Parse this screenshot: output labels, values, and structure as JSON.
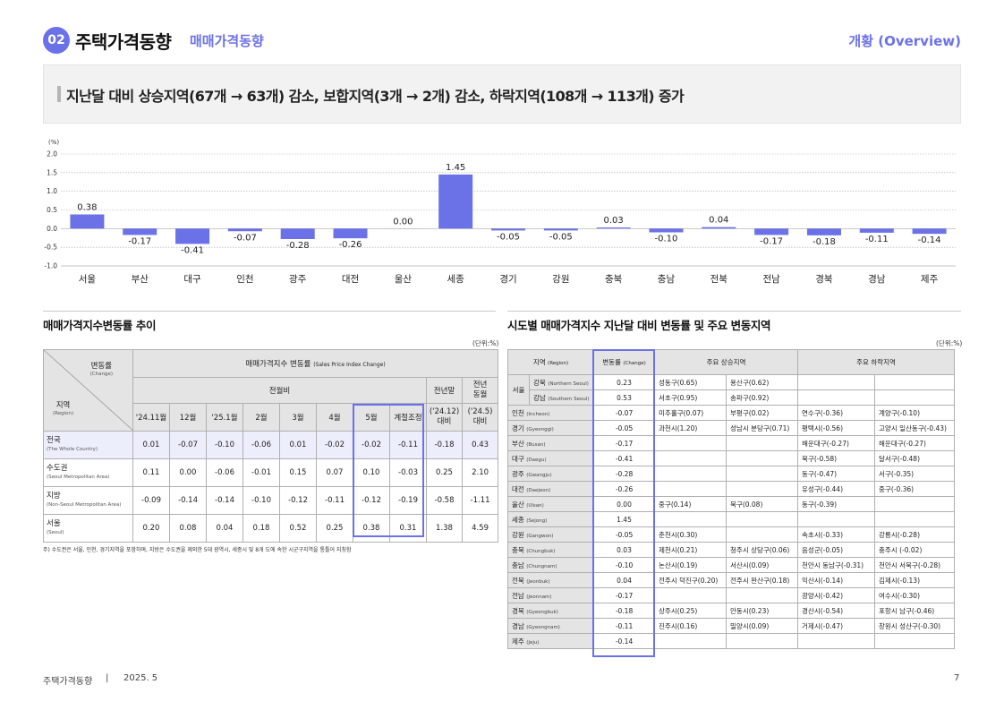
{
  "header": {
    "badge": "02",
    "title": "주택가격동향",
    "subtitle": "매매가격동향",
    "right": "개황 (Overview)"
  },
  "headline": "지난달 대비 상승지역(67개 → 63개) 감소, 보합지역(3개 → 2개) 감소, 하락지역(108개 → 113개) 증가",
  "chart_data": {
    "type": "bar",
    "unit_label": "(%)",
    "categories": [
      "서울",
      "부산",
      "대구",
      "인천",
      "광주",
      "대전",
      "울산",
      "세종",
      "경기",
      "강원",
      "충북",
      "충남",
      "전북",
      "전남",
      "경북",
      "경남",
      "제주"
    ],
    "values": [
      0.38,
      -0.17,
      -0.41,
      -0.07,
      -0.28,
      -0.26,
      0.0,
      1.45,
      -0.05,
      -0.05,
      0.03,
      -0.1,
      0.04,
      -0.17,
      -0.18,
      -0.11,
      -0.14
    ],
    "value_labels": [
      "0.38",
      "-0.17",
      "-0.41",
      "-0.07",
      "-0.28",
      "-0.26",
      "0.00",
      "1.45",
      "-0.05",
      "-0.05",
      "0.03",
      "-0.10",
      "0.04",
      "-0.17",
      "-0.18",
      "-0.11",
      "-0.14"
    ],
    "yticks": [
      "2.0",
      "1.5",
      "1.0",
      "0.5",
      "0.0",
      "-0.5",
      "-1.0"
    ],
    "ylim": [
      -1.0,
      2.0
    ],
    "grid": true,
    "bar_color": "#6b72e8"
  },
  "left": {
    "title": "매매가격지수변동률 추이",
    "unit": "(단위:%)",
    "corner_top": "변동률",
    "corner_top_en": "(Change)",
    "corner_bottom": "지역",
    "corner_bottom_en": "(Region)",
    "group_header": "매매가격지수 변동률",
    "group_header_en": "(Sales Price Index Change)",
    "prev_month_header": "전월비",
    "prev_year_end_header": "전년말",
    "same_month_header1": "전년",
    "same_month_header2": "동월",
    "months": [
      "'24.11월",
      "12월",
      "'25.1월",
      "2월",
      "3월",
      "4월",
      "5월",
      "계절조정"
    ],
    "prev_year_end_sub1": "('24.12)",
    "prev_year_end_sub2": "대비",
    "same_month_sub1": "('24.5)",
    "same_month_sub2": "대비",
    "rows": [
      {
        "name": "전국",
        "en": "(The Whole Country)",
        "vals": [
          "0.01",
          "-0.07",
          "-0.10",
          "-0.06",
          "0.01",
          "-0.02",
          "-0.02",
          "-0.11",
          "-0.18",
          "0.43"
        ]
      },
      {
        "name": "수도권",
        "en": "(Seoul Metropolitan Area)",
        "vals": [
          "0.11",
          "0.00",
          "-0.06",
          "-0.01",
          "0.15",
          "0.07",
          "0.10",
          "-0.03",
          "0.25",
          "2.10"
        ]
      },
      {
        "name": "지방",
        "en": "(Non-Seoul Metropolitan Area)",
        "vals": [
          "-0.09",
          "-0.14",
          "-0.14",
          "-0.10",
          "-0.12",
          "-0.11",
          "-0.12",
          "-0.19",
          "-0.58",
          "-1.11"
        ]
      },
      {
        "name": "서울",
        "en": "(Seoul)",
        "vals": [
          "0.20",
          "0.08",
          "0.04",
          "0.18",
          "0.52",
          "0.25",
          "0.38",
          "0.31",
          "1.38",
          "4.59"
        ]
      }
    ],
    "note": "주) 수도권은 서울, 인천, 경기지역을 포함하며, 지방은 수도권을 제외한 5대 광역시, 세종시 및 8개 도에 속한 시군구지역을 통틀어 지칭함"
  },
  "right": {
    "title": "시도별 매매가격지수 지난달 대비 변동률 및 주요 변동지역",
    "unit": "(단위:%)",
    "h_region": "지역",
    "h_region_en": "(Region)",
    "h_change": "변동률",
    "h_change_en": "(Change)",
    "h_up": "주요 상승지역",
    "h_down": "주요 하락지역",
    "seoul": {
      "name": "서울",
      "rows": [
        {
          "sub": "강북",
          "sub_en": "(Northern Seoul)",
          "ch": "0.23",
          "u1": "성동구(0.65)",
          "u2": "용산구(0.62)",
          "d1": "",
          "d2": ""
        },
        {
          "sub": "강남",
          "sub_en": "(Southern Seoul)",
          "ch": "0.53",
          "u1": "서초구(0.95)",
          "u2": "송파구(0.92)",
          "d1": "",
          "d2": ""
        }
      ]
    },
    "rows": [
      {
        "name": "인천",
        "en": "(Incheon)",
        "ch": "-0.07",
        "u1": "미추홀구(0.07)",
        "u2": "부평구(0.02)",
        "d1": "연수구(-0.36)",
        "d2": "계양구(-0.10)"
      },
      {
        "name": "경기",
        "en": "(Gyeonggi)",
        "ch": "-0.05",
        "u1": "과천시(1.20)",
        "u2": "성남시 분당구(0.71)",
        "d1": "평택시(-0.56)",
        "d2": "고양시 일산동구(-0.43)"
      },
      {
        "name": "부산",
        "en": "(Busan)",
        "ch": "-0.17",
        "u1": "",
        "u2": "",
        "d1": "해운대구(-0.27)",
        "d2": "해운대구(-0.27)"
      },
      {
        "name": "대구",
        "en": "(Daegu)",
        "ch": "-0.41",
        "u1": "",
        "u2": "",
        "d1": "북구(-0.58)",
        "d2": "달서구(-0.48)"
      },
      {
        "name": "광주",
        "en": "(Gwangju)",
        "ch": "-0.28",
        "u1": "",
        "u2": "",
        "d1": "동구(-0.47)",
        "d2": "서구(-0.35)"
      },
      {
        "name": "대전",
        "en": "(Daejeon)",
        "ch": "-0.26",
        "u1": "",
        "u2": "",
        "d1": "유성구(-0.44)",
        "d2": "중구(-0.36)"
      },
      {
        "name": "울산",
        "en": "(Ulsan)",
        "ch": "0.00",
        "u1": "중구(0.14)",
        "u2": "북구(0.08)",
        "d1": "동구(-0.39)",
        "d2": ""
      },
      {
        "name": "세종",
        "en": "(Sejong)",
        "ch": "1.45",
        "u1": "",
        "u2": "",
        "d1": "",
        "d2": ""
      },
      {
        "name": "강원",
        "en": "(Gangwon)",
        "ch": "-0.05",
        "u1": "춘천시(0.30)",
        "u2": "",
        "d1": "속초시(-0.33)",
        "d2": "강릉시(-0.28)"
      },
      {
        "name": "충북",
        "en": "(Chungbuk)",
        "ch": "0.03",
        "u1": "제천시(0.21)",
        "u2": "청주시 상당구(0.06)",
        "d1": "음성군(-0.05)",
        "d2": "충주시 (-0.02)"
      },
      {
        "name": "충남",
        "en": "(Chungnam)",
        "ch": "-0.10",
        "u1": "논산시(0.19)",
        "u2": "서산시(0.09)",
        "d1": "천안시 동남구(-0.31)",
        "d2": "천안시 서북구(-0.28)"
      },
      {
        "name": "전북",
        "en": "(Jeonbuk)",
        "ch": "0.04",
        "u1": "전주시 덕진구(0.20)",
        "u2": "전주시 완산구(0.18)",
        "d1": "익산시(-0.14)",
        "d2": "김제시(-0.13)"
      },
      {
        "name": "전남",
        "en": "(Jeonnam)",
        "ch": "-0.17",
        "u1": "",
        "u2": "",
        "d1": "광양시(-0.42)",
        "d2": "여수시(-0.30)"
      },
      {
        "name": "경북",
        "en": "(Gyeongbuk)",
        "ch": "-0.18",
        "u1": "상주시(0.25)",
        "u2": "안동시(0.23)",
        "d1": "경산시(-0.54)",
        "d2": "포항시 남구(-0.46)"
      },
      {
        "name": "경남",
        "en": "(Gyeongnam)",
        "ch": "-0.11",
        "u1": "진주시(0.16)",
        "u2": "밀양시(0.09)",
        "d1": "거제시(-0.47)",
        "d2": "창원시 성산구(-0.30)"
      },
      {
        "name": "제주",
        "en": "(Jeju)",
        "ch": "-0.14",
        "u1": "",
        "u2": "",
        "d1": "",
        "d2": ""
      }
    ]
  },
  "footer": {
    "left": "주택가격동향",
    "sep": "|",
    "date": "2025. 5",
    "page": "7"
  }
}
